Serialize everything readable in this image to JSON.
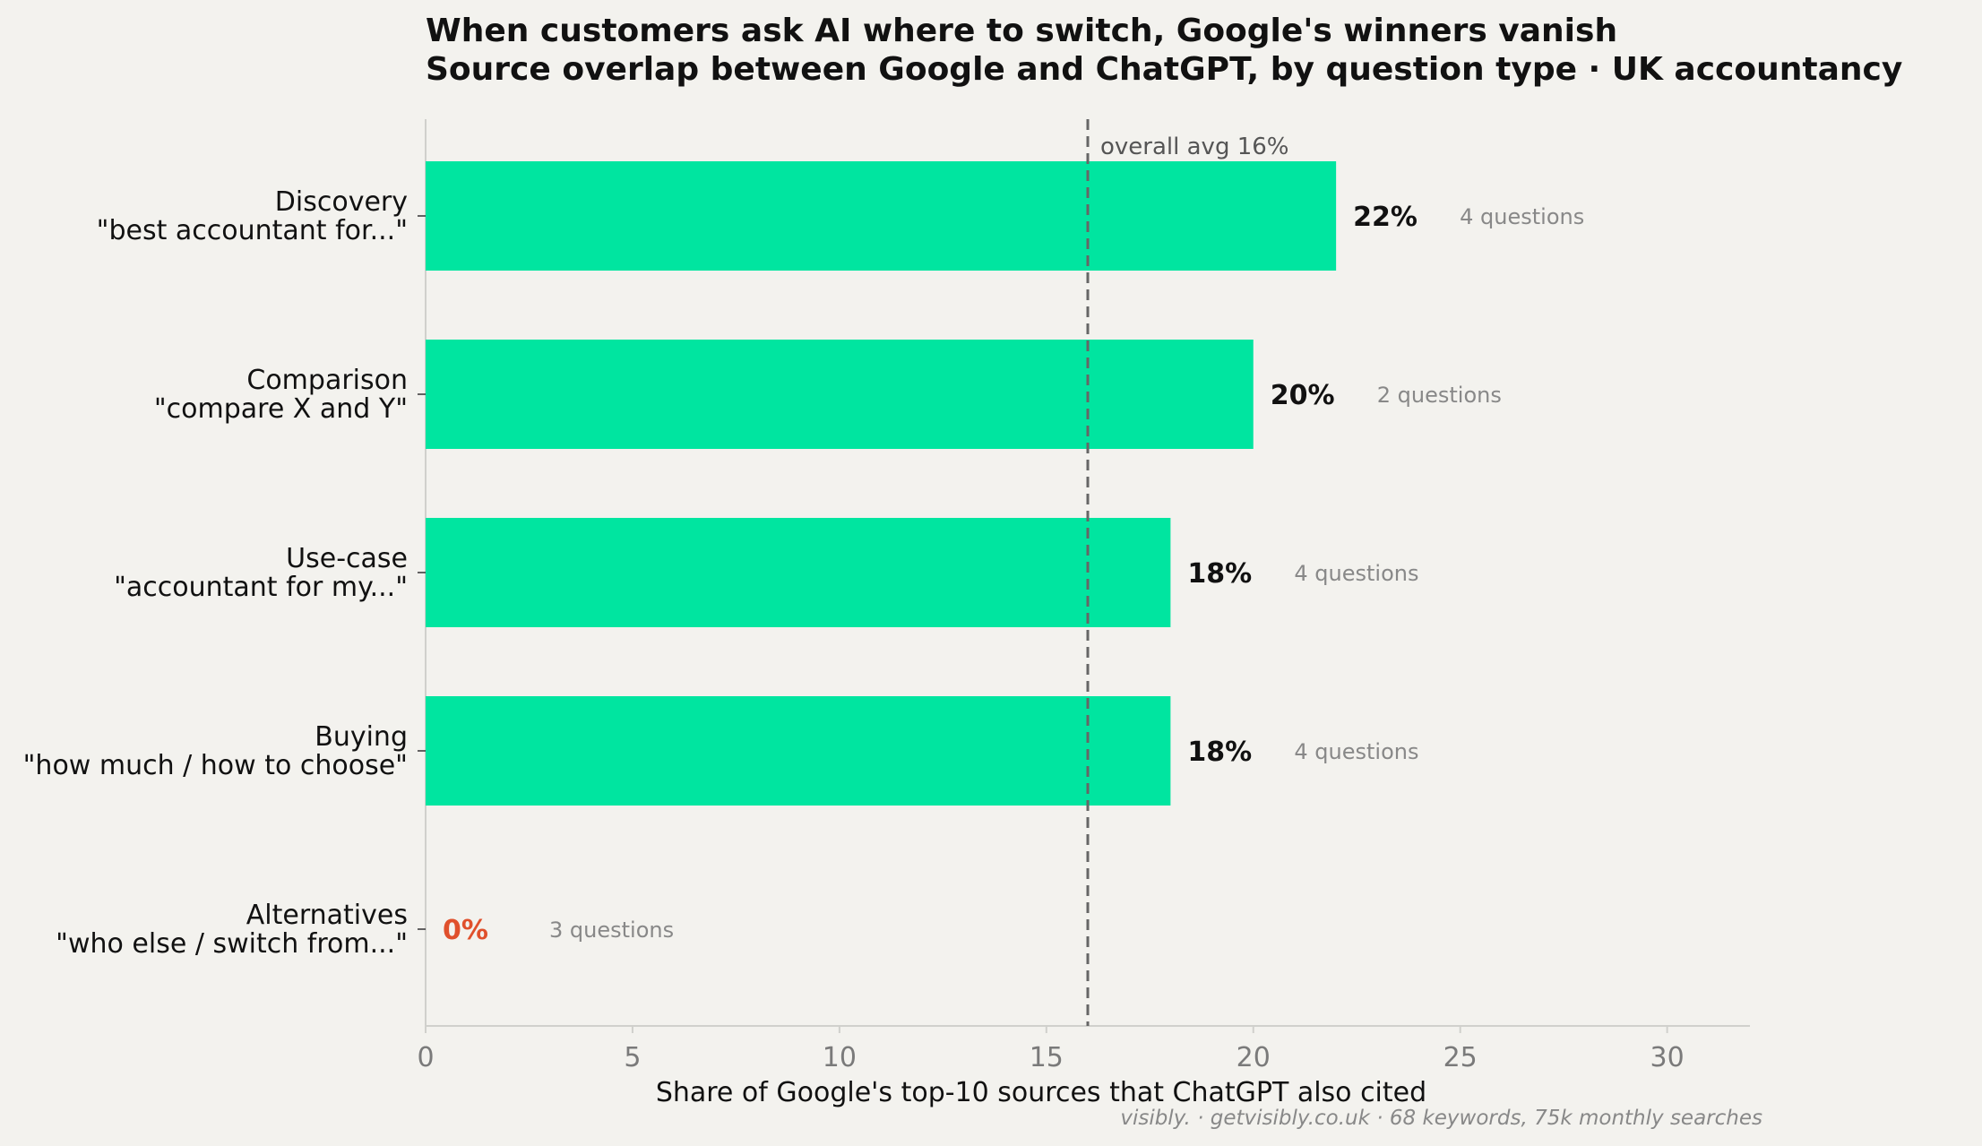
{
  "chart_data": {
    "type": "bar",
    "orientation": "horizontal",
    "title": "When customers ask AI where to switch, Google's winners vanish",
    "subtitle": "Source overlap between Google and ChatGPT, by question type · UK accountancy",
    "xlabel": "Share of Google's top-10 sources that ChatGPT also cited",
    "xlim": [
      0,
      32
    ],
    "xticks": [
      0,
      5,
      10,
      15,
      20,
      25,
      30
    ],
    "categories": [
      {
        "name": "Discovery",
        "example": "\"best accountant for...\"",
        "value": 22,
        "value_label": "22%",
        "questions": "4 questions"
      },
      {
        "name": "Comparison",
        "example": "\"compare X and Y\"",
        "value": 20,
        "value_label": "20%",
        "questions": "2 questions"
      },
      {
        "name": "Use-case",
        "example": "\"accountant for my...\"",
        "value": 18,
        "value_label": "18%",
        "questions": "4 questions"
      },
      {
        "name": "Buying",
        "example": "\"how much / how to choose\"",
        "value": 18,
        "value_label": "18%",
        "questions": "4 questions"
      },
      {
        "name": "Alternatives",
        "example": "\"who else / switch from...\"",
        "value": 0,
        "value_label": "0%",
        "questions": "3 questions"
      }
    ],
    "reference_line": {
      "value": 16,
      "label": "overall avg 16%"
    },
    "footer": "visibly. · getvisibly.co.uk · 68 keywords, 75k monthly searches",
    "grid": false,
    "colors": {
      "bar": "#00e5a0",
      "zero_label": "#e0502c",
      "background": "#f3f2ee",
      "avg_line": "#666666"
    }
  }
}
